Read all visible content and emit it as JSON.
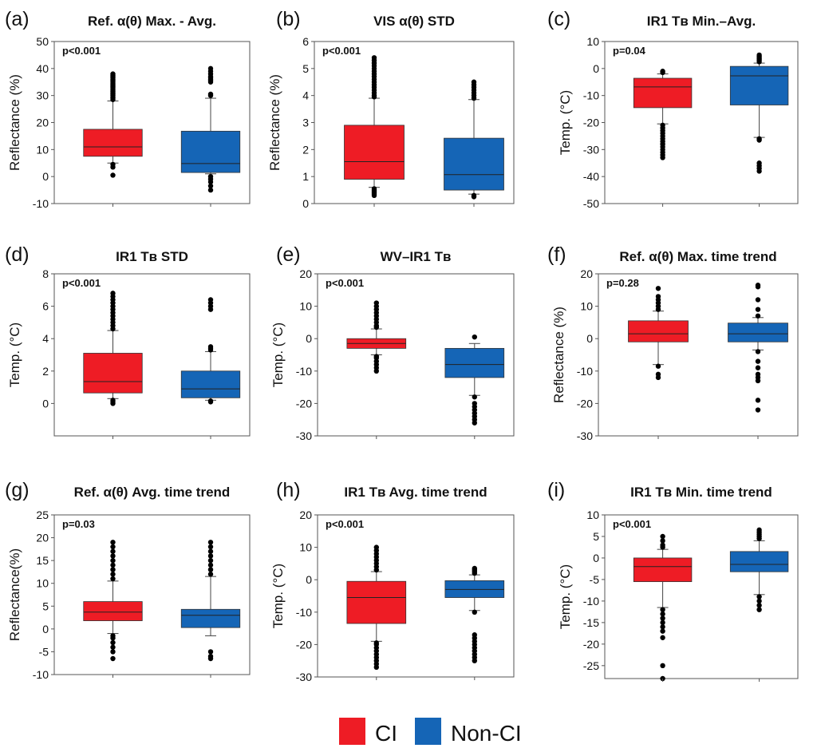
{
  "figure": {
    "colors": {
      "ci": "#ee1c25",
      "nonci": "#1565b6",
      "axis": "#555555",
      "whisker": "#444444"
    },
    "legend": {
      "items": [
        {
          "label": "CI",
          "color": "#ee1c25"
        },
        {
          "label": "Non-CI",
          "color": "#1565b6"
        }
      ]
    }
  },
  "chart_data": [
    {
      "type": "box",
      "letter": "(a)",
      "title": "Ref. α(θ) Max. - Avg.",
      "ylabel": "Reflectance (%)",
      "ylim": [
        -10,
        50
      ],
      "yticks": [
        -10,
        0,
        10,
        20,
        30,
        40,
        50
      ],
      "pvalue": "p<0.001",
      "series": [
        {
          "name": "CI",
          "q1": 7.5,
          "median": 11,
          "q3": 17.5,
          "whisker_low": 5,
          "whisker_high": 28,
          "outliers": [
            0.5,
            3.5,
            4.5,
            28.5,
            29,
            29.5,
            30,
            30.5,
            31,
            31.5,
            32,
            32.5,
            33,
            33.5,
            34,
            34.5,
            35,
            35.5,
            36,
            36.5,
            37,
            37.5,
            38
          ]
        },
        {
          "name": "Non-CI",
          "q1": 1.5,
          "median": 4.8,
          "q3": 16.8,
          "whisker_low": 1,
          "whisker_high": 29,
          "outliers": [
            -5,
            -3.5,
            -2,
            -1,
            0,
            30,
            30.5,
            35,
            35.5,
            36,
            36.5,
            37,
            38,
            39,
            40
          ]
        }
      ]
    },
    {
      "type": "box",
      "letter": "(b)",
      "title": "VIS α(θ)  STD",
      "ylabel": "Reflectance (%)",
      "ylim": [
        0,
        6
      ],
      "yticks": [
        0,
        1,
        2,
        3,
        4,
        5,
        6
      ],
      "pvalue": "p<0.001",
      "series": [
        {
          "name": "CI",
          "q1": 0.9,
          "median": 1.55,
          "q3": 2.9,
          "whisker_low": 0.6,
          "whisker_high": 3.9,
          "outliers": [
            0.3,
            0.35,
            0.4,
            0.45,
            0.5,
            0.55,
            3.95,
            4.0,
            4.1,
            4.2,
            4.3,
            4.4,
            4.5,
            4.6,
            4.7,
            4.8,
            4.9,
            5.0,
            5.1,
            5.2,
            5.3,
            5.4
          ]
        },
        {
          "name": "Non-CI",
          "q1": 0.5,
          "median": 1.07,
          "q3": 2.42,
          "whisker_low": 0.35,
          "whisker_high": 3.85,
          "outliers": [
            0.25,
            0.3,
            3.9,
            4.0,
            4.1,
            4.2,
            4.3,
            4.4,
            4.5
          ]
        }
      ]
    },
    {
      "type": "box",
      "letter": "(c)",
      "title": "IR1 Tʙ Min.–Avg.",
      "ylabel": "Temp. (°C)",
      "ylim": [
        -50,
        10
      ],
      "yticks": [
        -50,
        -40,
        -30,
        -20,
        -10,
        0,
        10
      ],
      "pvalue": "p=0.04",
      "series": [
        {
          "name": "CI",
          "q1": -14.5,
          "median": -6.8,
          "q3": -3.6,
          "whisker_low": -20.5,
          "whisker_high": -2,
          "outliers": [
            -1,
            -1.5,
            -21,
            -22,
            -23,
            -24,
            -25,
            -26,
            -27,
            -28,
            -29,
            -30,
            -31,
            -32,
            -33
          ]
        },
        {
          "name": "Non-CI",
          "q1": -13.5,
          "median": -2.7,
          "q3": 0.8,
          "whisker_low": -25.5,
          "whisker_high": 2,
          "outliers": [
            2.5,
            3,
            3.5,
            4,
            4.5,
            5,
            -26,
            -26.5,
            -35,
            -36,
            -37,
            -38
          ]
        }
      ]
    },
    {
      "type": "box",
      "letter": "(d)",
      "title": "IR1 Tʙ STD",
      "ylabel": "Temp. (°C)",
      "ylim": [
        -2,
        8
      ],
      "yticks": [
        0,
        2,
        4,
        6,
        8
      ],
      "pvalue": "p<0.001",
      "series": [
        {
          "name": "CI",
          "q1": 0.65,
          "median": 1.35,
          "q3": 3.1,
          "whisker_low": 0.3,
          "whisker_high": 4.5,
          "outliers": [
            0,
            0.1,
            0.2,
            4.6,
            4.8,
            5.0,
            5.2,
            5.4,
            5.6,
            5.8,
            6.0,
            6.2,
            6.4,
            6.6,
            6.8
          ]
        },
        {
          "name": "Non-CI",
          "q1": 0.35,
          "median": 0.9,
          "q3": 2.0,
          "whisker_low": 0.2,
          "whisker_high": 3.2,
          "outliers": [
            0.1,
            0.15,
            3.3,
            3.4,
            3.5,
            5.8,
            6.0,
            6.2,
            6.4
          ]
        }
      ]
    },
    {
      "type": "box",
      "letter": "(e)",
      "title": "WV–IR1 Tʙ",
      "ylabel": "Temp. (°C)",
      "ylim": [
        -30,
        20
      ],
      "yticks": [
        -30,
        -20,
        -10,
        0,
        10,
        20
      ],
      "pvalue": "p<0.001",
      "series": [
        {
          "name": "CI",
          "q1": -3,
          "median": -1.5,
          "q3": 0,
          "whisker_low": -5,
          "whisker_high": 3,
          "outliers": [
            3.5,
            4,
            5,
            6,
            7,
            8,
            9,
            10,
            11,
            -5.5,
            -6,
            -7,
            -8,
            -9,
            -10
          ]
        },
        {
          "name": "Non-CI",
          "q1": -12,
          "median": -8,
          "q3": -3,
          "whisker_low": -17.5,
          "whisker_high": -1.5,
          "outliers": [
            0.5,
            -18,
            -20,
            -21,
            -22,
            -23,
            -24,
            -25,
            -26
          ]
        }
      ]
    },
    {
      "type": "box",
      "letter": "(f)",
      "title": "Ref. α(θ) Max. time trend",
      "ylabel": "Reflectance (%)",
      "ylim": [
        -30,
        20
      ],
      "yticks": [
        -30,
        -20,
        -10,
        0,
        10,
        20
      ],
      "pvalue": "p=0.28",
      "series": [
        {
          "name": "CI",
          "q1": -1,
          "median": 1.5,
          "q3": 5.5,
          "whisker_low": -8,
          "whisker_high": 8.5,
          "outliers": [
            9,
            10,
            11,
            12,
            13,
            15.5,
            -8.5,
            -11,
            -12
          ]
        },
        {
          "name": "Non-CI",
          "q1": -1,
          "median": 1.5,
          "q3": 4.8,
          "whisker_low": -3.5,
          "whisker_high": 6.5,
          "outliers": [
            7,
            9,
            12,
            16,
            16.5,
            -4,
            -7,
            -9,
            -11,
            -12,
            -13,
            -19,
            -22
          ]
        }
      ]
    },
    {
      "type": "box",
      "letter": "(g)",
      "title": "Ref. α(θ) Avg. time trend",
      "ylabel": "Reflectance(%)",
      "ylim": [
        -10,
        25
      ],
      "yticks": [
        -10,
        -5,
        0,
        5,
        10,
        15,
        20,
        25
      ],
      "pvalue": "p=0.03",
      "series": [
        {
          "name": "CI",
          "q1": 1.8,
          "median": 3.7,
          "q3": 6.0,
          "whisker_low": -1,
          "whisker_high": 10.5,
          "outliers": [
            11,
            12,
            13,
            14,
            15,
            16,
            17,
            18,
            19,
            -1.5,
            -2,
            -3,
            -4,
            -5,
            -6.5
          ]
        },
        {
          "name": "Non-CI",
          "q1": 0.3,
          "median": 3.0,
          "q3": 4.3,
          "whisker_low": -1.5,
          "whisker_high": 11.5,
          "outliers": [
            12,
            13,
            14,
            15,
            16,
            17,
            18,
            19,
            -5,
            -6,
            -6.5
          ]
        }
      ]
    },
    {
      "type": "box",
      "letter": "(h)",
      "title": "IR1 Tʙ Avg. time trend",
      "ylabel": "Temp. (°C)",
      "ylim": [
        -30,
        20
      ],
      "yticks": [
        -30,
        -20,
        -10,
        0,
        10,
        20
      ],
      "pvalue": "p<0.001",
      "series": [
        {
          "name": "CI",
          "q1": -13.5,
          "median": -5.5,
          "q3": -0.5,
          "whisker_low": -19,
          "whisker_high": 2.5,
          "outliers": [
            3,
            4,
            5,
            6,
            7,
            8,
            9,
            10,
            -19.5,
            -20,
            -21,
            -22,
            -23,
            -24,
            -25,
            -26,
            -27
          ]
        },
        {
          "name": "Non-CI",
          "q1": -5.5,
          "median": -3,
          "q3": -0.3,
          "whisker_low": -9.5,
          "whisker_high": 1.5,
          "outliers": [
            2,
            2.5,
            3,
            3.5,
            -10,
            -17,
            -18,
            -19,
            -20,
            -21,
            -22,
            -23,
            -24,
            -25
          ]
        }
      ]
    },
    {
      "type": "box",
      "letter": "(i)",
      "title": "IR1 Tʙ Min. time trend",
      "ylabel": "Temp. (°C)",
      "ylim": [
        -28,
        10
      ],
      "yticks": [
        -25,
        -20,
        -15,
        -10,
        -5,
        0,
        5,
        10
      ],
      "pvalue": "p<0.001",
      "series": [
        {
          "name": "CI",
          "q1": -5.5,
          "median": -2,
          "q3": 0,
          "whisker_low": -11.5,
          "whisker_high": 2,
          "outliers": [
            2.5,
            3,
            4,
            5,
            -12,
            -13,
            -14,
            -15,
            -16,
            -17,
            -18.5,
            -25,
            -28
          ]
        },
        {
          "name": "Non-CI",
          "q1": -3.2,
          "median": -1.5,
          "q3": 1.5,
          "whisker_low": -8.5,
          "whisker_high": 4,
          "outliers": [
            4.5,
            5,
            5.5,
            6,
            6.5,
            -9,
            -10,
            -11,
            -12
          ]
        }
      ]
    }
  ]
}
